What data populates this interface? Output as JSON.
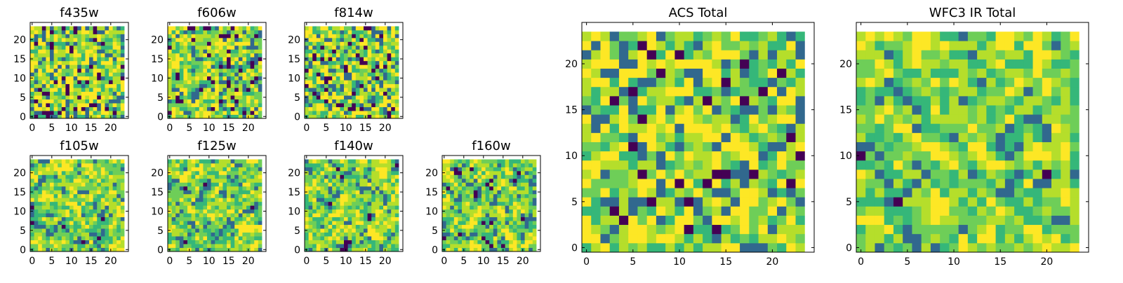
{
  "chart_data": {
    "type": "heatmap",
    "colormap": [
      "#440154",
      "#31688e",
      "#35b779",
      "#6ece58",
      "#b5de2b",
      "#fde725"
    ],
    "grid_size": 24,
    "panels": [
      {
        "title": "f435w",
        "xticks": [
          0,
          5,
          10,
          15,
          20
        ],
        "yticks": [
          0,
          5,
          10,
          15,
          20
        ],
        "xlim": [
          -0.5,
          24.5
        ],
        "ylim": [
          -0.5,
          24.5
        ]
      },
      {
        "title": "f606w",
        "xticks": [
          0,
          5,
          10,
          15,
          20
        ],
        "yticks": [
          0,
          5,
          10,
          15,
          20
        ],
        "xlim": [
          -0.5,
          24.5
        ],
        "ylim": [
          -0.5,
          24.5
        ]
      },
      {
        "title": "f814w",
        "xticks": [
          0,
          5,
          10,
          15,
          20
        ],
        "yticks": [
          0,
          5,
          10,
          15,
          20
        ],
        "xlim": [
          -0.5,
          24.5
        ],
        "ylim": [
          -0.5,
          24.5
        ]
      },
      {
        "title": "f105w",
        "xticks": [
          0,
          5,
          10,
          15,
          20
        ],
        "yticks": [
          0,
          5,
          10,
          15,
          20
        ],
        "xlim": [
          -0.5,
          24.5
        ],
        "ylim": [
          -0.5,
          24.5
        ]
      },
      {
        "title": "f125w",
        "xticks": [
          0,
          5,
          10,
          15,
          20
        ],
        "yticks": [
          0,
          5,
          10,
          15,
          20
        ],
        "xlim": [
          -0.5,
          24.5
        ],
        "ylim": [
          -0.5,
          24.5
        ]
      },
      {
        "title": "f140w",
        "xticks": [
          0,
          5,
          10,
          15,
          20
        ],
        "yticks": [
          0,
          5,
          10,
          15,
          20
        ],
        "xlim": [
          -0.5,
          24.5
        ],
        "ylim": [
          -0.5,
          24.5
        ]
      },
      {
        "title": "f160w",
        "xticks": [
          0,
          5,
          10,
          15,
          20
        ],
        "yticks": [
          0,
          5,
          10,
          15,
          20
        ],
        "xlim": [
          -0.5,
          24.5
        ],
        "ylim": [
          -0.5,
          24.5
        ]
      },
      {
        "title": "ACS Total",
        "xticks": [
          0,
          5,
          10,
          15,
          20
        ],
        "yticks": [
          0,
          5,
          10,
          15,
          20
        ],
        "xlim": [
          -0.5,
          24.5
        ],
        "ylim": [
          -0.5,
          24.5
        ]
      },
      {
        "title": "WFC3 IR Total",
        "xticks": [
          0,
          5,
          10,
          15,
          20
        ],
        "yticks": [
          0,
          5,
          10,
          15,
          20
        ],
        "xlim": [
          -0.5,
          24.5
        ],
        "ylim": [
          -0.5,
          24.5
        ]
      }
    ]
  }
}
